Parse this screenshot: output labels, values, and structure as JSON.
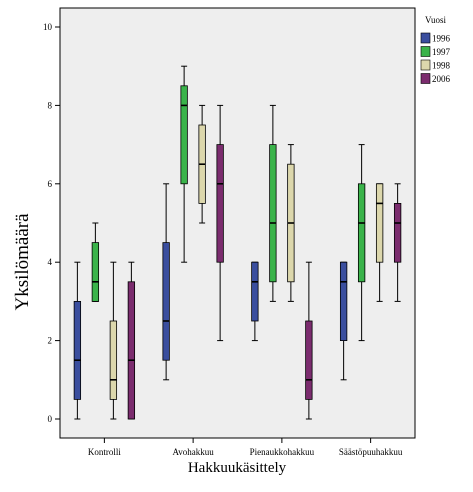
{
  "chart_data": {
    "type": "boxplot",
    "xlabel": "Hakkuukäsittely",
    "ylabel": "Yksilömäärä",
    "ylim": [
      0,
      10
    ],
    "yticks": [
      0,
      2,
      4,
      6,
      8,
      10
    ],
    "categories": [
      "Kontrolli",
      "Avohakkuu",
      "Pienaukkohakkuu",
      "Säästöpuuhakkuu"
    ],
    "legend": {
      "title": "Vuosi",
      "position": "right"
    },
    "series": [
      {
        "name": "1996",
        "color": "#3a4e9e",
        "boxes": [
          {
            "min": 0,
            "q1": 0.5,
            "median": 1.5,
            "q3": 3,
            "max": 4
          },
          {
            "min": 1,
            "q1": 1.5,
            "median": 2.5,
            "q3": 4.5,
            "max": 6
          },
          {
            "min": 2,
            "q1": 2.5,
            "median": 3.5,
            "q3": 4,
            "max": 4
          },
          {
            "min": 1,
            "q1": 2,
            "median": 3.5,
            "q3": 4,
            "max": 4
          }
        ]
      },
      {
        "name": "1997",
        "color": "#3ab34a",
        "boxes": [
          {
            "min": 3,
            "q1": 3,
            "median": 3.5,
            "q3": 4.5,
            "max": 5
          },
          {
            "min": 4,
            "q1": 6,
            "median": 8,
            "q3": 8.5,
            "max": 9
          },
          {
            "min": 3,
            "q1": 3.5,
            "median": 5,
            "q3": 7,
            "max": 8
          },
          {
            "min": 2,
            "q1": 3.5,
            "median": 5,
            "q3": 6,
            "max": 7
          }
        ]
      },
      {
        "name": "1998",
        "color": "#dcd7ac",
        "boxes": [
          {
            "min": 0,
            "q1": 0.5,
            "median": 1,
            "q3": 2.5,
            "max": 4
          },
          {
            "min": 5,
            "q1": 5.5,
            "median": 6.5,
            "q3": 7.5,
            "max": 8
          },
          {
            "min": 3,
            "q1": 3.5,
            "median": 5,
            "q3": 6.5,
            "max": 7
          },
          {
            "min": 3,
            "q1": 4,
            "median": 5.5,
            "q3": 6,
            "max": 6
          }
        ]
      },
      {
        "name": "2006",
        "color": "#7b2c6e",
        "boxes": [
          {
            "min": 0,
            "q1": 0,
            "median": 1.5,
            "q3": 3.5,
            "max": 4
          },
          {
            "min": 2,
            "q1": 4,
            "median": 6,
            "q3": 7,
            "max": 8
          },
          {
            "min": 0,
            "q1": 0.5,
            "median": 1,
            "q3": 2.5,
            "max": 4
          },
          {
            "min": 3,
            "q1": 4,
            "median": 5,
            "q3": 5.5,
            "max": 6
          }
        ]
      }
    ]
  }
}
